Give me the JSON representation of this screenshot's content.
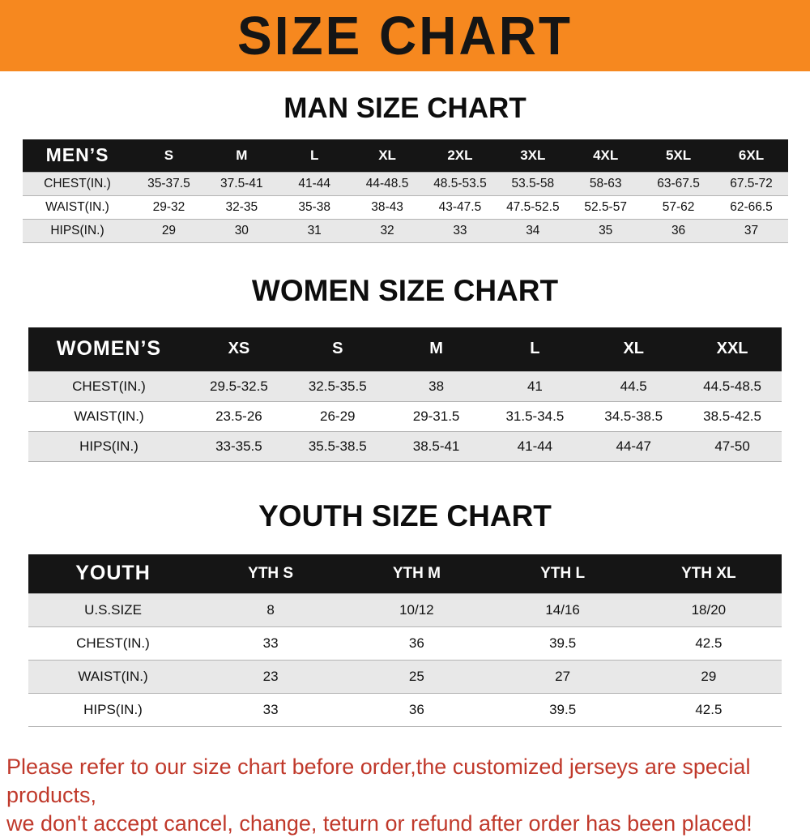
{
  "banner": {
    "title": "SIZE CHART"
  },
  "colors": {
    "banner_orange": "#f6881f",
    "header_black": "#151515",
    "stripe_gray": "#e8e8e8",
    "footer_red": "#c0392b"
  },
  "chart_data": [
    {
      "type": "table",
      "title": "MAN SIZE CHART",
      "corner_label": "MEN’S",
      "columns": [
        "S",
        "M",
        "L",
        "XL",
        "2XL",
        "3XL",
        "4XL",
        "5XL",
        "6XL"
      ],
      "rows": [
        [
          "CHEST(IN.)",
          "35-37.5",
          "37.5-41",
          "41-44",
          "44-48.5",
          "48.5-53.5",
          "53.5-58",
          "58-63",
          "63-67.5",
          "67.5-72"
        ],
        [
          "WAIST(IN.)",
          "29-32",
          "32-35",
          "35-38",
          "38-43",
          "43-47.5",
          "47.5-52.5",
          "52.5-57",
          "57-62",
          "62-66.5"
        ],
        [
          "HIPS(IN.)",
          "29",
          "30",
          "31",
          "32",
          "33",
          "34",
          "35",
          "36",
          "37"
        ]
      ]
    },
    {
      "type": "table",
      "title": "WOMEN SIZE CHART",
      "corner_label": "WOMEN’S",
      "columns": [
        "XS",
        "S",
        "M",
        "L",
        "XL",
        "XXL"
      ],
      "rows": [
        [
          "CHEST(IN.)",
          "29.5-32.5",
          "32.5-35.5",
          "38",
          "41",
          "44.5",
          "44.5-48.5"
        ],
        [
          "WAIST(IN.)",
          "23.5-26",
          "26-29",
          "29-31.5",
          "31.5-34.5",
          "34.5-38.5",
          "38.5-42.5"
        ],
        [
          "HIPS(IN.)",
          "33-35.5",
          "35.5-38.5",
          "38.5-41",
          "41-44",
          "44-47",
          "47-50"
        ]
      ]
    },
    {
      "type": "table",
      "title": "YOUTH SIZE CHART",
      "corner_label": "YOUTH",
      "columns": [
        "YTH S",
        "YTH M",
        "YTH L",
        "YTH XL"
      ],
      "rows": [
        [
          "U.S.SIZE",
          "8",
          "10/12",
          "14/16",
          "18/20"
        ],
        [
          "CHEST(IN.)",
          "33",
          "36",
          "39.5",
          "42.5"
        ],
        [
          "WAIST(IN.)",
          "23",
          "25",
          "27",
          "29"
        ],
        [
          "HIPS(IN.)",
          "33",
          "36",
          "39.5",
          "42.5"
        ]
      ]
    }
  ],
  "footer": {
    "lines": [
      "Please refer to our size chart before order,the customized jerseys are special products,",
      "we don't accept cancel, change, teturn or refund after order has been placed!"
    ]
  }
}
